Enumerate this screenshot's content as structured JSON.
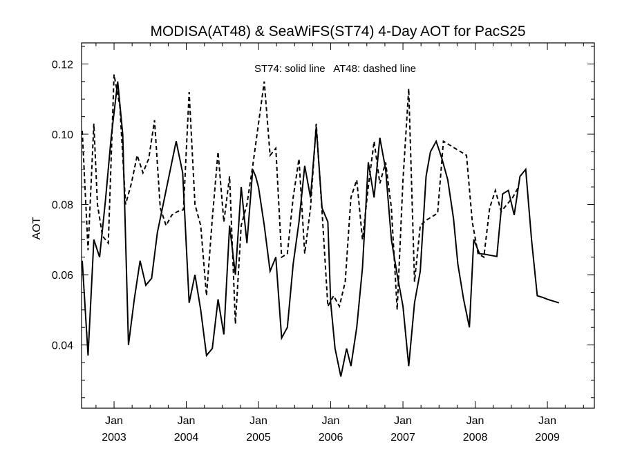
{
  "chart_data": {
    "type": "line",
    "title": "MODISA(AT48) & SeaWiFS(ST74) 4-Day AOT for PacS25",
    "xlabel": "",
    "ylabel": "AOT",
    "annotation": "ST74: solid line   AT48: dashed line",
    "xlim": [
      2002.55,
      2009.65
    ],
    "ylim": [
      0.022,
      0.126
    ],
    "x_ticks": [
      {
        "value": 2003.0,
        "month": "Jan",
        "year": "2003"
      },
      {
        "value": 2004.0,
        "month": "Jan",
        "year": "2004"
      },
      {
        "value": 2005.0,
        "month": "Jan",
        "year": "2005"
      },
      {
        "value": 2006.0,
        "month": "Jan",
        "year": "2006"
      },
      {
        "value": 2007.0,
        "month": "Jan",
        "year": "2007"
      },
      {
        "value": 2008.0,
        "month": "Jan",
        "year": "2008"
      },
      {
        "value": 2009.0,
        "month": "Jan",
        "year": "2009"
      }
    ],
    "y_ticks": [
      {
        "value": 0.04,
        "label": "0.04"
      },
      {
        "value": 0.06,
        "label": "0.06"
      },
      {
        "value": 0.08,
        "label": "0.08"
      },
      {
        "value": 0.1,
        "label": "0.10"
      },
      {
        "value": 0.12,
        "label": "0.12"
      }
    ],
    "grid": false,
    "series": [
      {
        "name": "ST74",
        "style": "solid",
        "color": "#000000",
        "x": [
          2002.56,
          2002.64,
          2002.72,
          2002.8,
          2002.88,
          2002.96,
          2003.05,
          2003.12,
          2003.2,
          2003.28,
          2003.36,
          2003.44,
          2003.52,
          2003.6,
          2003.68,
          2003.77,
          2003.86,
          2003.95,
          2004.04,
          2004.12,
          2004.2,
          2004.28,
          2004.36,
          2004.44,
          2004.52,
          2004.6,
          2004.68,
          2004.76,
          2004.84,
          2004.92,
          2004.96,
          2005.0,
          2005.08,
          2005.16,
          2005.24,
          2005.32,
          2005.4,
          2005.48,
          2005.56,
          2005.64,
          2005.72,
          2005.8,
          2005.88,
          2005.96,
          2006.0,
          2006.06,
          2006.14,
          2006.22,
          2006.28,
          2006.36,
          2006.44,
          2006.52,
          2006.6,
          2006.68,
          2006.76,
          2006.84,
          2006.92,
          2007.0,
          2007.08,
          2007.16,
          2007.24,
          2007.32,
          2007.38,
          2007.46,
          2007.54,
          2007.62,
          2007.7,
          2007.76,
          2007.84,
          2007.92,
          2007.98,
          2008.06,
          2008.14,
          2008.22,
          2008.3,
          2008.38,
          2008.46,
          2008.54,
          2008.62,
          2008.7,
          2008.78,
          2008.86,
          2008.94,
          2009.0,
          2009.08,
          2009.16,
          2009.24,
          2009.32,
          2009.4,
          2009.48,
          2009.56,
          2009.65
        ],
        "y": [
          0.064,
          0.037,
          0.07,
          0.065,
          0.081,
          0.099,
          0.115,
          0.1,
          0.04,
          0.053,
          0.064,
          0.057,
          0.059,
          0.072,
          0.08,
          0.089,
          0.098,
          0.089,
          0.052,
          0.06,
          0.05,
          0.037,
          0.039,
          0.053,
          0.043,
          0.074,
          0.06,
          0.085,
          0.069,
          0.09,
          0.088,
          0.085,
          0.074,
          0.061,
          0.065,
          0.042,
          0.045,
          0.063,
          0.075,
          0.091,
          0.082,
          0.102,
          0.079,
          0.075,
          0.052,
          0.039,
          0.031,
          0.039,
          0.034,
          0.045,
          0.062,
          0.092,
          0.082,
          0.099,
          0.09,
          0.07,
          0.06,
          0.051,
          0.034,
          0.052,
          0.061,
          0.088,
          0.095,
          0.098,
          0.093,
          0.087,
          0.076,
          0.063,
          0.053,
          0.045,
          0.07,
          0.066,
          0.0658,
          0.0655,
          0.0652,
          0.083,
          0.084,
          0.077,
          0.088,
          0.09,
          0.07,
          0.054,
          0.0535,
          0.053,
          0.0525,
          0.052,
          null,
          null,
          null,
          null,
          null,
          null
        ],
        "x_note": "",
        "y_note": ""
      },
      {
        "name": "AT48",
        "style": "dashed",
        "color": "#000000",
        "x": [
          2002.56,
          2002.64,
          2002.72,
          2002.77,
          2002.84,
          2002.92,
          2003.0,
          2003.08,
          2003.16,
          2003.24,
          2003.32,
          2003.4,
          2003.48,
          2003.56,
          2003.64,
          2003.72,
          2003.8,
          2003.88,
          2003.96,
          2004.04,
          2004.12,
          2004.2,
          2004.28,
          2004.36,
          2004.44,
          2004.52,
          2004.6,
          2004.68,
          2004.76,
          2004.84,
          2004.92,
          2005.0,
          2005.08,
          2005.16,
          2005.24,
          2005.32,
          2005.4,
          2005.48,
          2005.56,
          2005.64,
          2005.72,
          2005.8,
          2005.88,
          2005.96,
          2006.04,
          2006.12,
          2006.2,
          2006.28,
          2006.36,
          2006.44,
          2006.52,
          2006.6,
          2006.68,
          2006.76,
          2006.84,
          2006.92,
          2007.0,
          2007.08,
          2007.16,
          2007.24,
          2007.32,
          2007.4,
          2007.48,
          2007.56,
          2007.64,
          2007.72,
          2007.8,
          2007.88,
          2007.96,
          2008.04,
          2008.12,
          2008.2,
          2008.28,
          2008.36,
          2008.44,
          2008.52,
          2008.6,
          2008.68,
          2008.76,
          2008.84,
          2008.92,
          2009.0,
          2009.08,
          2009.16,
          2009.24,
          2009.32,
          2009.4,
          2009.48,
          2009.56,
          2009.65
        ],
        "y": [
          0.101,
          0.067,
          0.103,
          0.08,
          0.071,
          0.069,
          0.117,
          0.108,
          0.08,
          0.086,
          0.094,
          0.089,
          0.093,
          0.104,
          0.079,
          0.074,
          0.077,
          0.078,
          0.0785,
          0.112,
          0.08,
          0.074,
          0.054,
          0.076,
          0.095,
          0.075,
          0.088,
          0.046,
          0.074,
          0.08,
          0.091,
          0.103,
          0.115,
          0.094,
          0.096,
          0.065,
          0.066,
          0.082,
          0.093,
          0.066,
          0.079,
          0.103,
          0.078,
          0.051,
          0.054,
          0.051,
          0.058,
          0.082,
          0.087,
          0.07,
          0.085,
          0.098,
          0.086,
          0.092,
          0.079,
          0.05,
          0.087,
          0.113,
          0.058,
          0.074,
          0.0755,
          0.0765,
          0.0775,
          0.098,
          0.097,
          0.096,
          0.095,
          0.094,
          0.075,
          0.066,
          0.065,
          0.079,
          0.084,
          0.078,
          0.08,
          0.082,
          0.085,
          null,
          null,
          null,
          null,
          null,
          null,
          null,
          null,
          null,
          null,
          null,
          null,
          null
        ],
        "x_note": "",
        "y_note": ""
      }
    ]
  }
}
